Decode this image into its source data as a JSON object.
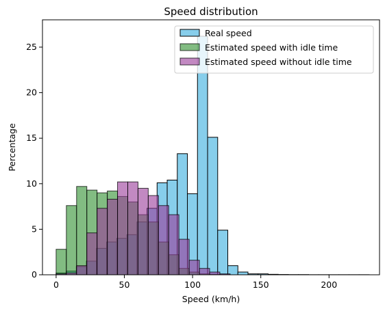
{
  "chart_data": {
    "type": "bar",
    "title": "Speed distribution",
    "xlabel": "Speed (km/h)",
    "ylabel": "Percentage",
    "xlim": [
      -10,
      237
    ],
    "ylim": [
      0,
      28
    ],
    "x_ticks": [
      0,
      50,
      100,
      150,
      200
    ],
    "y_ticks": [
      0,
      5,
      10,
      15,
      20,
      25
    ],
    "grid": false,
    "legend_position": "top-right",
    "legend": [
      {
        "label": "Real speed",
        "series_index": 0
      },
      {
        "label": "Estimated speed with idle time",
        "series_index": 1
      },
      {
        "label": "Estimated speed without idle time",
        "series_index": 2
      }
    ],
    "series": [
      {
        "name": "Real speed",
        "color": "#87ceeb",
        "alpha": 1,
        "bins": [
          {
            "start": 0,
            "end": 7.4,
            "value": 0.2
          },
          {
            "start": 7.4,
            "end": 14.8,
            "value": 0.4
          },
          {
            "start": 14.8,
            "end": 22.2,
            "value": 0.9
          },
          {
            "start": 22.2,
            "end": 29.6,
            "value": 1.5
          },
          {
            "start": 29.6,
            "end": 37,
            "value": 2.9
          },
          {
            "start": 37,
            "end": 44.4,
            "value": 3.6
          },
          {
            "start": 44.4,
            "end": 51.8,
            "value": 4.0
          },
          {
            "start": 51.8,
            "end": 59.2,
            "value": 4.4
          },
          {
            "start": 59.2,
            "end": 66.6,
            "value": 5.8
          },
          {
            "start": 66.6,
            "end": 74,
            "value": 7.3
          },
          {
            "start": 74,
            "end": 81.4,
            "value": 10.1
          },
          {
            "start": 81.4,
            "end": 88.8,
            "value": 10.4
          },
          {
            "start": 88.8,
            "end": 96.2,
            "value": 13.3
          },
          {
            "start": 96.2,
            "end": 103.6,
            "value": 8.9
          },
          {
            "start": 103.6,
            "end": 111,
            "value": 26.2
          },
          {
            "start": 111,
            "end": 118.4,
            "value": 15.1
          },
          {
            "start": 118.4,
            "end": 125.8,
            "value": 4.9
          },
          {
            "start": 125.8,
            "end": 133.2,
            "value": 1.0
          },
          {
            "start": 133.2,
            "end": 140.6,
            "value": 0.3
          },
          {
            "start": 140.6,
            "end": 148,
            "value": 0.1
          },
          {
            "start": 148,
            "end": 155.4,
            "value": 0.1
          },
          {
            "start": 155.4,
            "end": 162.8,
            "value": 0.05
          },
          {
            "start": 162.8,
            "end": 170.2,
            "value": 0.03
          },
          {
            "start": 170.2,
            "end": 177.6,
            "value": 0.02
          },
          {
            "start": 177.6,
            "end": 185,
            "value": 0.02
          },
          {
            "start": 185,
            "end": 192.4,
            "value": 0.01
          },
          {
            "start": 192.4,
            "end": 199.8,
            "value": 0.01
          },
          {
            "start": 199.8,
            "end": 207.2,
            "value": 0.01
          },
          {
            "start": 207.2,
            "end": 214.6,
            "value": 0.01
          },
          {
            "start": 214.6,
            "end": 222,
            "value": 0.01
          },
          {
            "start": 222,
            "end": 229.4,
            "value": 0.01
          }
        ]
      },
      {
        "name": "Estimated speed with idle time",
        "color": "#2f8f2f",
        "alpha": 0.6,
        "bins": [
          {
            "start": 0,
            "end": 7.5,
            "value": 2.8
          },
          {
            "start": 7.5,
            "end": 15,
            "value": 7.6
          },
          {
            "start": 15,
            "end": 22.5,
            "value": 9.7
          },
          {
            "start": 22.5,
            "end": 30,
            "value": 9.3
          },
          {
            "start": 30,
            "end": 37.5,
            "value": 9.0
          },
          {
            "start": 37.5,
            "end": 45,
            "value": 9.2
          },
          {
            "start": 45,
            "end": 52.5,
            "value": 8.6
          },
          {
            "start": 52.5,
            "end": 60,
            "value": 8.0
          },
          {
            "start": 60,
            "end": 67.5,
            "value": 6.6
          },
          {
            "start": 67.5,
            "end": 75,
            "value": 5.8
          },
          {
            "start": 75,
            "end": 82.5,
            "value": 3.6
          },
          {
            "start": 82.5,
            "end": 90,
            "value": 2.2
          },
          {
            "start": 90,
            "end": 97.5,
            "value": 0.7
          },
          {
            "start": 97.5,
            "end": 105,
            "value": 0.3
          },
          {
            "start": 105,
            "end": 112.5,
            "value": 0.1
          },
          {
            "start": 112.5,
            "end": 120,
            "value": 0.05
          },
          {
            "start": 120,
            "end": 127.5,
            "value": 0.02
          }
        ]
      },
      {
        "name": "Estimated speed without idle time",
        "color": "#9a3b9a",
        "alpha": 0.6,
        "bins": [
          {
            "start": 0,
            "end": 7.5,
            "value": 0.1
          },
          {
            "start": 7.5,
            "end": 15,
            "value": 0.2
          },
          {
            "start": 15,
            "end": 22.5,
            "value": 1.0
          },
          {
            "start": 22.5,
            "end": 30,
            "value": 4.6
          },
          {
            "start": 30,
            "end": 37.5,
            "value": 7.3
          },
          {
            "start": 37.5,
            "end": 45,
            "value": 8.3
          },
          {
            "start": 45,
            "end": 52.5,
            "value": 10.2
          },
          {
            "start": 52.5,
            "end": 60,
            "value": 10.2
          },
          {
            "start": 60,
            "end": 67.5,
            "value": 9.5
          },
          {
            "start": 67.5,
            "end": 75,
            "value": 8.7
          },
          {
            "start": 75,
            "end": 82.5,
            "value": 7.6
          },
          {
            "start": 82.5,
            "end": 90,
            "value": 6.6
          },
          {
            "start": 90,
            "end": 97.5,
            "value": 3.9
          },
          {
            "start": 97.5,
            "end": 105,
            "value": 1.6
          },
          {
            "start": 105,
            "end": 112.5,
            "value": 0.7
          },
          {
            "start": 112.5,
            "end": 120,
            "value": 0.3
          },
          {
            "start": 120,
            "end": 127.5,
            "value": 0.1
          }
        ]
      }
    ]
  }
}
